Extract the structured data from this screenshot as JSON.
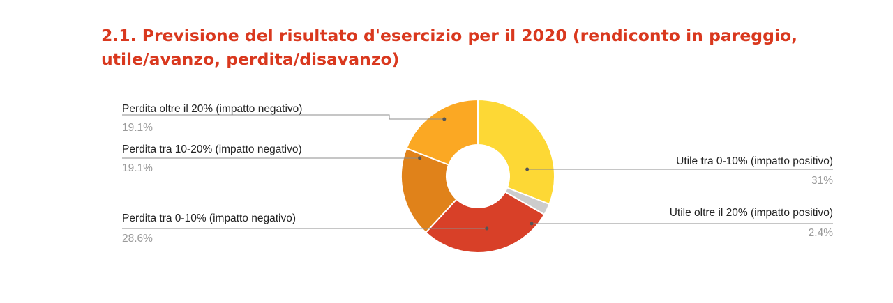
{
  "chart_data": {
    "type": "pie",
    "title": "2.1. Previsione del risultato d'esercizio per il 2020 (rendiconto in pareggio, utile/avanzo, perdita/disavanzo)",
    "donut": true,
    "slices": [
      {
        "label": "Utile tra 0-10% (impatto positivo)",
        "value": 31,
        "display": "31%",
        "color": "#fdd835"
      },
      {
        "label": "Utile oltre il 20% (impatto positivo)",
        "value": 2.4,
        "display": "2.4%",
        "color": "#cccccc"
      },
      {
        "label": "Perdita tra 0-10% (impatto negativo)",
        "value": 28.6,
        "display": "28.6%",
        "color": "#d84028"
      },
      {
        "label": "Perdita tra 10-20% (impatto negativo)",
        "value": 19.1,
        "display": "19.1%",
        "color": "#e0821a"
      },
      {
        "label": "Perdita oltre il 20% (impatto negativo)",
        "value": 19.1,
        "display": "19.1%",
        "color": "#fba823"
      }
    ],
    "legend": "none"
  },
  "colors": {
    "title": "#d9381e",
    "label_text": "#222222",
    "percent_text": "#9a9a9a",
    "leader_line": "#8c8c8c"
  }
}
